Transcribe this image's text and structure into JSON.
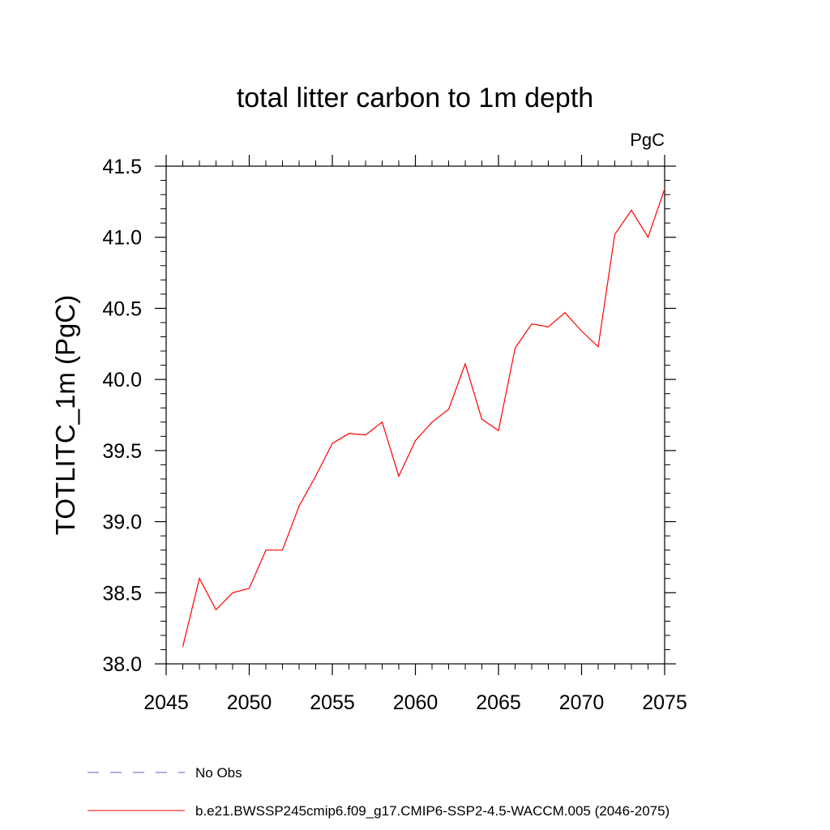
{
  "chart_data": {
    "type": "line",
    "title": "total litter carbon to 1m depth",
    "units": "PgC",
    "xlabel": "",
    "ylabel": "TOTLITC_1m  (PgC)",
    "xlim": [
      2045,
      2075
    ],
    "ylim": [
      38.0,
      41.5
    ],
    "x_ticks": [
      "2045",
      "2050",
      "2055",
      "2060",
      "2065",
      "2070",
      "2075"
    ],
    "y_ticks": [
      "38.0",
      "38.5",
      "39.0",
      "39.5",
      "40.0",
      "40.5",
      "41.0",
      "41.5"
    ],
    "grid": false,
    "legend_position": "bottom-left",
    "series": [
      {
        "name": "b.e21.BWSSP245cmip6.f09_g17.CMIP6-SSP2-4.5-WACCM.005 (2046-2075)",
        "color": "#ff0000",
        "style": "solid",
        "x": [
          2046,
          2047,
          2048,
          2049,
          2050,
          2051,
          2052,
          2053,
          2054,
          2055,
          2056,
          2057,
          2058,
          2059,
          2060,
          2061,
          2062,
          2063,
          2064,
          2065,
          2066,
          2067,
          2068,
          2069,
          2070,
          2071,
          2072,
          2073,
          2074,
          2075
        ],
        "values": [
          38.12,
          38.6,
          38.38,
          38.5,
          38.53,
          38.8,
          38.8,
          39.11,
          39.32,
          39.55,
          39.62,
          39.61,
          39.7,
          39.32,
          39.57,
          39.7,
          39.79,
          40.11,
          39.72,
          39.64,
          40.22,
          40.39,
          40.37,
          40.47,
          40.34,
          40.23,
          41.02,
          41.19,
          41.0,
          41.34
        ]
      }
    ],
    "legend": [
      {
        "label": "No Obs",
        "color": "#6a5acd",
        "style": "dashed"
      },
      {
        "label": "b.e21.BWSSP245cmip6.f09_g17.CMIP6-SSP2-4.5-WACCM.005 (2046-2075)",
        "color": "#ff0000",
        "style": "solid"
      }
    ]
  }
}
